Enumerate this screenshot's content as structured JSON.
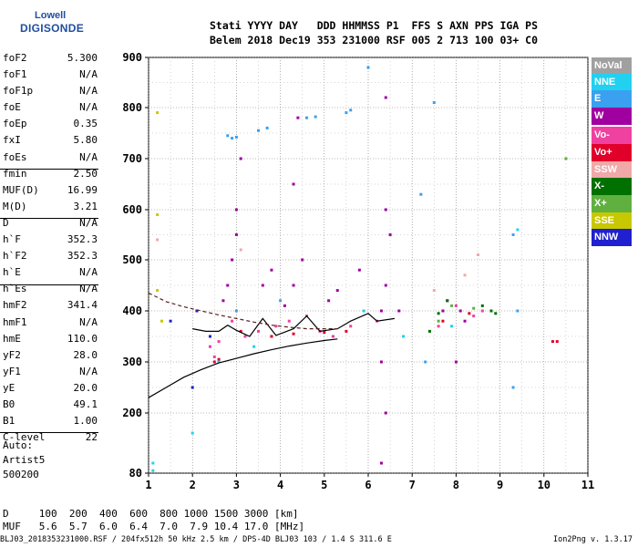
{
  "logo": {
    "top": "Lowell",
    "main": "DIGISONDE"
  },
  "header": {
    "line1": "Stati YYYY DAY   DDD HHMMSS P1  FFS S AXN PPS IGA PS",
    "line2": "Belem 2018 Dec19 353 231000 RSF 005 2 713 100 03+ C0"
  },
  "params": [
    {
      "label": "foF2",
      "value": "5.300"
    },
    {
      "label": "foF1",
      "value": "N/A"
    },
    {
      "label": "foF1p",
      "value": "N/A"
    },
    {
      "label": "foE",
      "value": "N/A"
    },
    {
      "label": "foEp",
      "value": "0.35"
    },
    {
      "label": "fxI",
      "value": "5.80"
    },
    {
      "label": "foEs",
      "value": "N/A"
    },
    {
      "label": "fmin",
      "value": "2.50"
    },
    {
      "label": "MUF(D)",
      "value": "16.99"
    },
    {
      "label": "M(D)",
      "value": "3.21"
    },
    {
      "label": "D",
      "value": "N/A"
    },
    {
      "label": "h`F",
      "value": "352.3"
    },
    {
      "label": "h`F2",
      "value": "352.3"
    },
    {
      "label": "h`E",
      "value": "N/A"
    },
    {
      "label": "h`Es",
      "value": "N/A"
    },
    {
      "label": "hmF2",
      "value": "341.4"
    },
    {
      "label": "hmF1",
      "value": "N/A"
    },
    {
      "label": "hmE",
      "value": "110.0"
    },
    {
      "label": "yF2",
      "value": "28.0"
    },
    {
      "label": "yF1",
      "value": "N/A"
    },
    {
      "label": "yE",
      "value": "20.0"
    },
    {
      "label": "B0",
      "value": "49.1"
    },
    {
      "label": "B1",
      "value": "1.00"
    },
    {
      "label": "C-level",
      "value": "22"
    }
  ],
  "auto": {
    "line1": "Auto:",
    "line2": "Artist5",
    "line3": "500200"
  },
  "muf_table": {
    "d_line": "D     100  200  400  600  800 1000 1500 3000 [km]",
    "muf_line": "MUF   5.6  5.7  6.0  6.4  7.0  7.9 10.4 17.0 [MHz]"
  },
  "bottom_line": "BLJ03_2018353231000.RSF / 204fx512h 50 kHz 2.5 km / DPS-4D BLJ03 103 / 1.4 S 311.6 E",
  "version": "Ion2Png v. 1.3.17",
  "legend": [
    {
      "label": "NoVal",
      "color": "#a0a0a0"
    },
    {
      "label": "NNE",
      "color": "#22d0f0"
    },
    {
      "label": "E",
      "color": "#3aa0f0"
    },
    {
      "label": "W",
      "color": "#a000a0"
    },
    {
      "label": "Vo-",
      "color": "#f040a0"
    },
    {
      "label": "Vo+",
      "color": "#e0002a"
    },
    {
      "label": "SSW",
      "color": "#f0a8a8"
    },
    {
      "label": "X-",
      "color": "#007000"
    },
    {
      "label": "X+",
      "color": "#60b040"
    },
    {
      "label": "SSE",
      "color": "#c8c800"
    },
    {
      "label": "NNW",
      "color": "#2020d0"
    }
  ],
  "chart_data": {
    "type": "scatter",
    "x_ticks": [
      "1",
      "2",
      "3",
      "4",
      "5",
      "6",
      "7",
      "8",
      "9",
      "10",
      "11"
    ],
    "y_ticks": [
      "80",
      "200",
      "300",
      "400",
      "500",
      "600",
      "700",
      "800",
      "900"
    ],
    "xlim": [
      1,
      11
    ],
    "ylim": [
      80,
      900
    ],
    "grid": true,
    "legend_position": "right",
    "series": [
      {
        "name": "E",
        "color": "#3aa0f0",
        "points": [
          [
            2.8,
            745
          ],
          [
            2.9,
            740
          ],
          [
            3.0,
            742
          ],
          [
            3.5,
            755
          ],
          [
            3.7,
            760
          ],
          [
            4.6,
            780
          ],
          [
            4.8,
            782
          ],
          [
            5.5,
            790
          ],
          [
            5.6,
            795
          ],
          [
            6.0,
            880
          ],
          [
            7.2,
            630
          ],
          [
            7.3,
            300
          ],
          [
            7.5,
            810
          ],
          [
            9.3,
            250
          ],
          [
            9.3,
            550
          ],
          [
            9.4,
            400
          ],
          [
            3.0,
            400
          ],
          [
            4.0,
            420
          ]
        ]
      },
      {
        "name": "W",
        "color": "#a000a0",
        "points": [
          [
            2.7,
            420
          ],
          [
            2.8,
            450
          ],
          [
            2.9,
            500
          ],
          [
            3.0,
            550
          ],
          [
            3.0,
            600
          ],
          [
            3.1,
            700
          ],
          [
            3.6,
            450
          ],
          [
            3.8,
            480
          ],
          [
            4.1,
            410
          ],
          [
            4.3,
            450
          ],
          [
            4.3,
            650
          ],
          [
            4.4,
            780
          ],
          [
            4.5,
            500
          ],
          [
            5.1,
            420
          ],
          [
            5.3,
            440
          ],
          [
            5.8,
            480
          ],
          [
            6.3,
            400
          ],
          [
            6.3,
            300
          ],
          [
            6.4,
            450
          ],
          [
            6.4,
            600
          ],
          [
            6.4,
            820
          ],
          [
            6.4,
            200
          ],
          [
            6.3,
            100
          ],
          [
            6.5,
            550
          ],
          [
            6.7,
            400
          ],
          [
            7.7,
            400
          ],
          [
            7.8,
            420
          ],
          [
            8.1,
            400
          ],
          [
            8.2,
            380
          ],
          [
            8.0,
            300
          ]
        ]
      },
      {
        "name": "Vo-",
        "color": "#f040a0",
        "points": [
          [
            2.4,
            330
          ],
          [
            2.5,
            310
          ],
          [
            2.6,
            340
          ],
          [
            2.9,
            380
          ],
          [
            3.2,
            350
          ],
          [
            3.5,
            360
          ],
          [
            3.9,
            370
          ],
          [
            4.2,
            380
          ],
          [
            4.6,
            390
          ],
          [
            4.9,
            360
          ],
          [
            5.2,
            350
          ],
          [
            5.6,
            370
          ],
          [
            6.2,
            380
          ],
          [
            7.6,
            370
          ],
          [
            8.0,
            410
          ],
          [
            8.6,
            400
          ],
          [
            8.4,
            390
          ]
        ]
      },
      {
        "name": "Vo+",
        "color": "#e0002a",
        "points": [
          [
            2.5,
            300
          ],
          [
            2.6,
            305
          ],
          [
            3.1,
            360
          ],
          [
            3.8,
            350
          ],
          [
            4.3,
            355
          ],
          [
            5.0,
            358
          ],
          [
            5.5,
            360
          ],
          [
            7.7,
            380
          ],
          [
            8.3,
            395
          ],
          [
            10.2,
            340
          ],
          [
            10.3,
            340
          ]
        ]
      },
      {
        "name": "SSW",
        "color": "#f0a8a8",
        "points": [
          [
            1.2,
            540
          ],
          [
            3.1,
            520
          ],
          [
            7.5,
            440
          ],
          [
            8.2,
            470
          ],
          [
            8.5,
            510
          ]
        ]
      },
      {
        "name": "X-",
        "color": "#007000",
        "points": [
          [
            7.4,
            360
          ],
          [
            7.6,
            395
          ],
          [
            7.8,
            420
          ],
          [
            8.6,
            410
          ],
          [
            8.8,
            400
          ],
          [
            8.9,
            395
          ]
        ]
      },
      {
        "name": "X+",
        "color": "#60b040",
        "points": [
          [
            7.6,
            380
          ],
          [
            7.9,
            410
          ],
          [
            8.4,
            405
          ],
          [
            10.5,
            700
          ]
        ]
      },
      {
        "name": "SSE",
        "color": "#c8c800",
        "points": [
          [
            1.2,
            790
          ],
          [
            1.2,
            590
          ],
          [
            1.2,
            440
          ],
          [
            1.3,
            380
          ]
        ]
      },
      {
        "name": "NNW",
        "color": "#2020d0",
        "points": [
          [
            1.5,
            380
          ],
          [
            2.0,
            250
          ],
          [
            2.1,
            400
          ],
          [
            2.4,
            350
          ]
        ]
      },
      {
        "name": "NNE",
        "color": "#22d0f0",
        "points": [
          [
            1.1,
            100
          ],
          [
            1.1,
            85
          ],
          [
            2.0,
            160
          ],
          [
            2.6,
            300
          ],
          [
            3.4,
            330
          ],
          [
            5.9,
            400
          ],
          [
            6.8,
            350
          ],
          [
            7.9,
            370
          ],
          [
            9.4,
            560
          ]
        ]
      }
    ],
    "lines": [
      {
        "name": "trace_lower",
        "color": "#000000",
        "points": [
          [
            1,
            230
          ],
          [
            1.4,
            250
          ],
          [
            1.8,
            270
          ],
          [
            2.2,
            285
          ],
          [
            2.6,
            298
          ],
          [
            3.0,
            307
          ],
          [
            3.4,
            316
          ],
          [
            3.8,
            324
          ],
          [
            4.2,
            331
          ],
          [
            4.6,
            337
          ],
          [
            5.0,
            342
          ],
          [
            5.3,
            345
          ]
        ]
      },
      {
        "name": "trace_upper",
        "color": "#000000",
        "points": [
          [
            2.0,
            365
          ],
          [
            2.3,
            360
          ],
          [
            2.6,
            360
          ],
          [
            2.8,
            372
          ],
          [
            3.0,
            362
          ],
          [
            3.3,
            350
          ],
          [
            3.6,
            385
          ],
          [
            3.9,
            352
          ],
          [
            4.3,
            365
          ],
          [
            4.6,
            390
          ],
          [
            4.9,
            360
          ],
          [
            5.3,
            365
          ],
          [
            5.6,
            380
          ],
          [
            6.0,
            395
          ],
          [
            6.2,
            380
          ],
          [
            6.6,
            385
          ]
        ]
      },
      {
        "name": "trace_dashed",
        "color": "#5a2020",
        "dashed": true,
        "points": [
          [
            1,
            435
          ],
          [
            1.4,
            418
          ],
          [
            1.8,
            408
          ],
          [
            2.2,
            400
          ],
          [
            2.6,
            392
          ],
          [
            3.0,
            385
          ],
          [
            3.4,
            378
          ],
          [
            3.8,
            372
          ],
          [
            4.2,
            368
          ],
          [
            4.6,
            365
          ],
          [
            5.0,
            365
          ],
          [
            5.3,
            365
          ]
        ]
      }
    ]
  }
}
